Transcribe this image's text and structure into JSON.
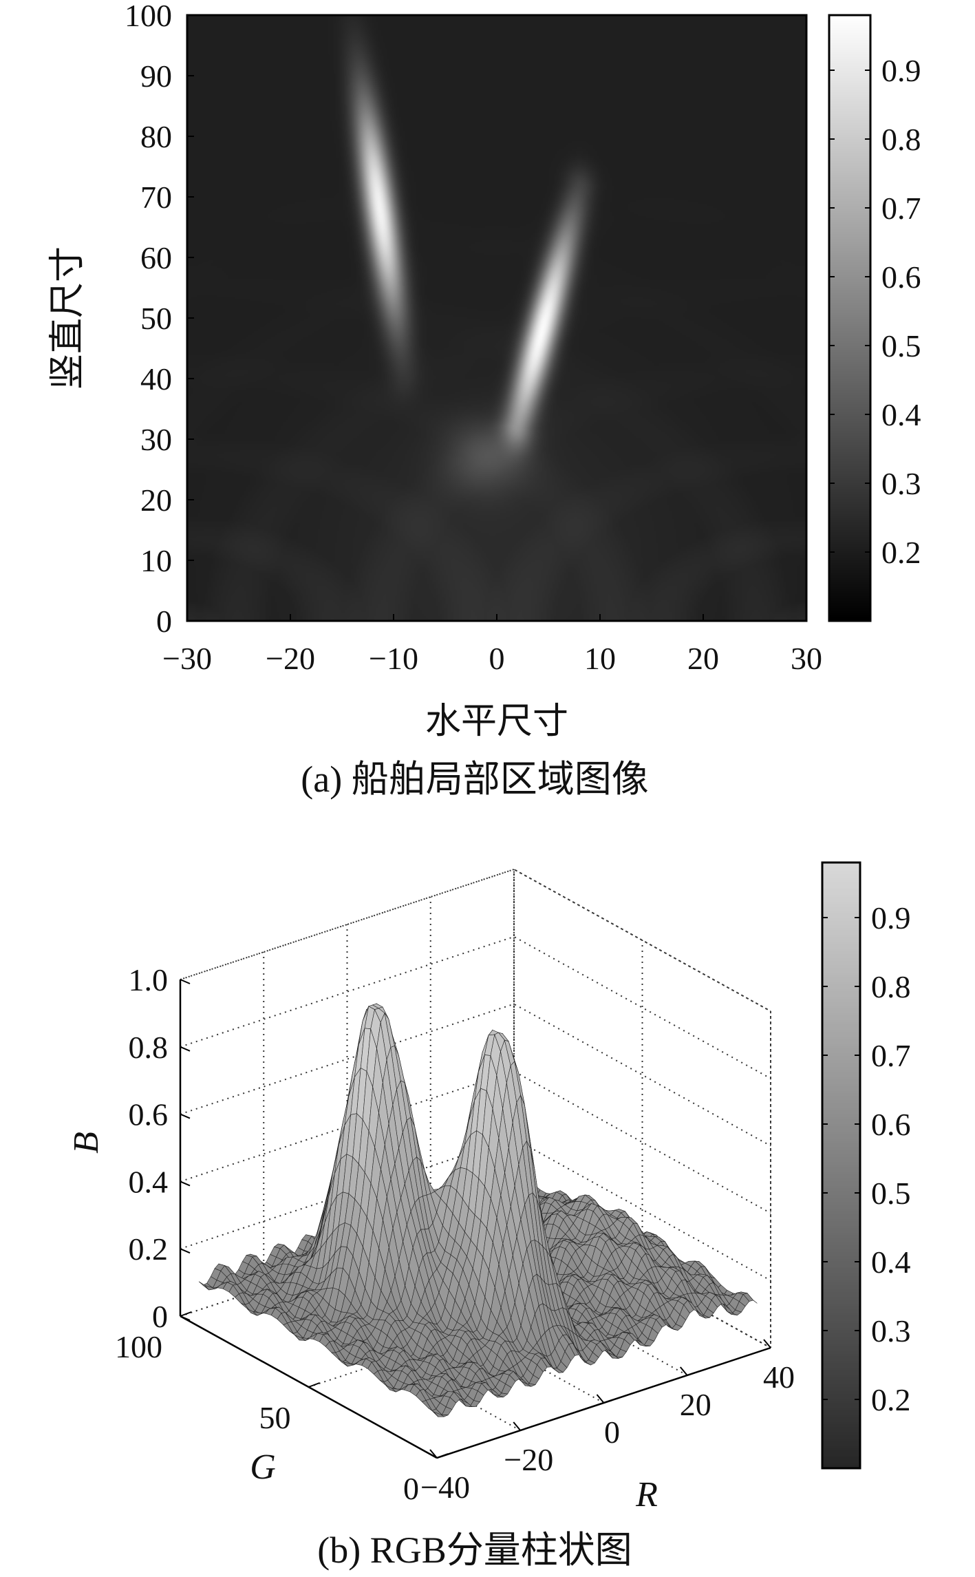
{
  "panels": {
    "a": {
      "caption": "(a) 船舶局部区域图像"
    },
    "b": {
      "caption": "(b) RGB分量柱状图"
    }
  },
  "chart_data": [
    {
      "type": "heatmap",
      "xlabel": "水平尺寸",
      "ylabel": "竖直尺寸",
      "xlim": [
        -30,
        30
      ],
      "ylim": [
        0,
        100
      ],
      "xticks": [
        -30,
        -20,
        -10,
        0,
        10,
        20,
        30
      ],
      "yticks": [
        0,
        10,
        20,
        30,
        40,
        50,
        60,
        70,
        80,
        90,
        100
      ],
      "xtick_labels": [
        "−30",
        "−20",
        "−10",
        "0",
        "10",
        "20",
        "30"
      ],
      "ytick_labels": [
        "0",
        "10",
        "20",
        "30",
        "40",
        "50",
        "60",
        "70",
        "80",
        "90",
        "100"
      ],
      "colormap": "gray",
      "colorbar": {
        "ticks": [
          0.2,
          0.3,
          0.4,
          0.5,
          0.6,
          0.7,
          0.8,
          0.9
        ],
        "labels": [
          "0.2",
          "0.3",
          "0.4",
          "0.5",
          "0.6",
          "0.7",
          "0.8",
          "0.9"
        ],
        "range": [
          0.1,
          0.98
        ]
      },
      "background_level": 0.12,
      "features": [
        {
          "name": "left-streak",
          "from": [
            -9,
            40
          ],
          "to": [
            -14,
            100
          ],
          "peak_at": [
            -11,
            68
          ],
          "peak": 0.95
        },
        {
          "name": "right-streak",
          "from": [
            2,
            32
          ],
          "to": [
            8,
            72
          ],
          "peak_at": [
            4.5,
            48
          ],
          "peak": 0.97
        },
        {
          "name": "center-glow",
          "at": [
            -1,
            27
          ],
          "peak": 0.28
        }
      ]
    },
    {
      "type": "surface3d",
      "xlabel": "R",
      "ylabel": "G",
      "zlabel": "B",
      "xlim": [
        -40,
        40
      ],
      "ylim": [
        0,
        100
      ],
      "zlim": [
        0,
        1.0
      ],
      "xticks": [
        -40,
        -20,
        0,
        20,
        40
      ],
      "yticks": [
        0,
        50,
        100
      ],
      "zticks": [
        0,
        0.2,
        0.4,
        0.6,
        0.8,
        1.0
      ],
      "xtick_labels": [
        "−40",
        "−20",
        "0",
        "20",
        "40"
      ],
      "ytick_labels": [
        "0",
        "50",
        "100"
      ],
      "ztick_labels": [
        "0",
        "0.2",
        "0.4",
        "0.6",
        "0.8",
        "1.0"
      ],
      "colormap": "gray",
      "colorbar": {
        "ticks": [
          0.2,
          0.3,
          0.4,
          0.5,
          0.6,
          0.7,
          0.8,
          0.9
        ],
        "labels": [
          "0.2",
          "0.3",
          "0.4",
          "0.5",
          "0.6",
          "0.7",
          "0.8",
          "0.9"
        ],
        "range": [
          0.1,
          0.98
        ]
      },
      "peaks": [
        {
          "R": -18,
          "G": 60,
          "B": 0.96
        },
        {
          "R": -6,
          "G": 30,
          "B": 0.95
        },
        {
          "R": 24,
          "G": 40,
          "B": 0.3
        }
      ],
      "base_level": 0.12
    }
  ]
}
